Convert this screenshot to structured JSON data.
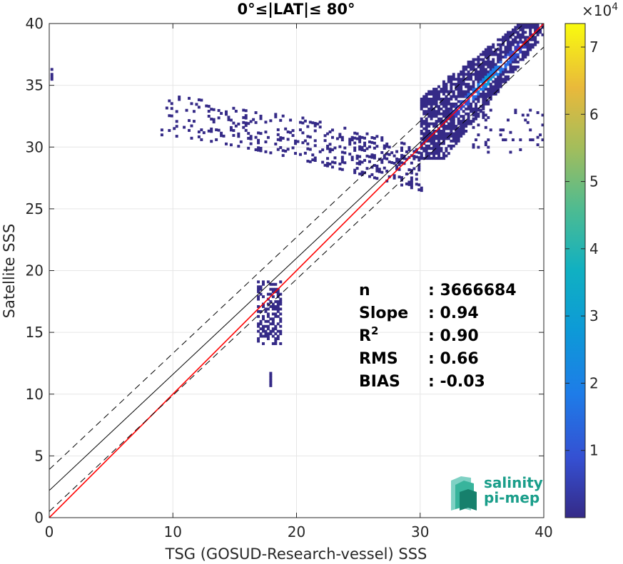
{
  "chart_data": {
    "type": "heatmap",
    "title": "0°≤|LAT|≤ 80°",
    "xlabel": "TSG (GOSUD-Research-vessel) SSS",
    "ylabel": "Satellite SSS",
    "xlim": [
      0,
      40
    ],
    "ylim": [
      0,
      40
    ],
    "x_ticks": [
      "0",
      "10",
      "20",
      "30",
      "40"
    ],
    "y_ticks": [
      "0",
      "5",
      "10",
      "15",
      "20",
      "25",
      "30",
      "35",
      "40"
    ],
    "grid": true,
    "colormap": "parula",
    "colorbar": {
      "min": 0,
      "max": 73500,
      "ticks": [
        "1",
        "2",
        "3",
        "4",
        "5",
        "6",
        "7"
      ],
      "tick_values": [
        10000,
        20000,
        30000,
        40000,
        50000,
        60000,
        70000
      ],
      "exponent_label": "×10",
      "exponent_power": "4"
    },
    "lines": [
      {
        "name": "one-to-one",
        "color": "#ff0000",
        "style": "solid",
        "x": [
          0,
          40
        ],
        "y": [
          0,
          40
        ]
      },
      {
        "name": "regression",
        "color": "#000000",
        "style": "solid",
        "x": [
          0,
          40
        ],
        "y": [
          2.2,
          39.8
        ]
      },
      {
        "name": "regression-plus",
        "color": "#000000",
        "style": "dashed",
        "x": [
          0,
          40
        ],
        "y": [
          3.9,
          41.5
        ]
      },
      {
        "name": "regression-minus",
        "color": "#000000",
        "style": "dashed",
        "x": [
          0,
          40
        ],
        "y": [
          0.5,
          38.1
        ]
      }
    ],
    "density_clusters": [
      {
        "x": [
          30,
          40
        ],
        "y": [
          29,
          40
        ],
        "peak": [
          35.5,
          35.3
        ]
      },
      {
        "x": [
          9,
          30
        ],
        "y": [
          26.5,
          33
        ],
        "peak": null
      },
      {
        "x": [
          17,
          18.5
        ],
        "y": [
          10.5,
          19
        ],
        "peak": null
      },
      {
        "x": [
          0,
          0.5
        ],
        "y": [
          34.5,
          36.5
        ],
        "peak": null
      }
    ],
    "stats": [
      {
        "label": "n",
        "value": ": 3666684"
      },
      {
        "label": "Slope",
        "value": ": 0.94"
      },
      {
        "label": "R",
        "sup": "2",
        "value": ": 0.90"
      },
      {
        "label": "RMS",
        "value": ": 0.66"
      },
      {
        "label": "BIAS",
        "value": ": -0.03"
      }
    ]
  },
  "logo": {
    "line1": "salinity",
    "line2": "pi-mep"
  },
  "colors": {
    "one_to_one": "#ff0000",
    "regression": "#000000",
    "low_density": "#3d26a8",
    "logo": "#1a9e8a"
  }
}
